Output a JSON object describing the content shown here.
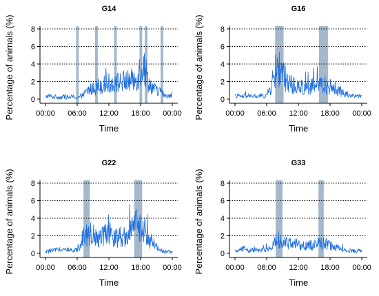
{
  "figure": {
    "background": "#ffffff"
  },
  "style": {
    "line_color": "#1f6fe0",
    "band_color": "#a3b8cb",
    "grid_color": "#000000",
    "axis_color": "#000000"
  },
  "chart_data": [
    {
      "type": "line",
      "title": "G14",
      "xlabel": "Time",
      "ylabel": "Percentage of animals (%)",
      "x_ticks": [
        "00:00",
        "06:00",
        "12:00",
        "18:00",
        "00:00"
      ],
      "y_ticks": [
        "0",
        "2",
        "4",
        "6",
        "8"
      ],
      "xlim_hours": [
        0,
        24
      ],
      "ylim": [
        0,
        8
      ],
      "grid": "horizontal dotted",
      "shaded_bands_hours": [
        [
          5.8,
          6.3
        ],
        [
          9.4,
          9.9
        ],
        [
          13.0,
          13.5
        ],
        [
          17.8,
          18.3
        ],
        [
          18.8,
          19.3
        ],
        [
          21.8,
          22.3
        ]
      ],
      "series": [
        {
          "values": [
            {
              "x": 0,
              "y": 0.2
            },
            {
              "x": 0.5,
              "y": 0.4
            },
            {
              "x": 1,
              "y": 0.3
            },
            {
              "x": 1.5,
              "y": 0.2
            },
            {
              "x": 2,
              "y": 0.3
            },
            {
              "x": 2.5,
              "y": 0.2
            },
            {
              "x": 3,
              "y": 0.2
            },
            {
              "x": 3.5,
              "y": 0.3
            },
            {
              "x": 4,
              "y": 0.2
            },
            {
              "x": 4.5,
              "y": 0.2
            },
            {
              "x": 5,
              "y": 0.3
            },
            {
              "x": 5.5,
              "y": 0.2
            },
            {
              "x": 6,
              "y": 0.2
            },
            {
              "x": 6.5,
              "y": 0.2
            },
            {
              "x": 7,
              "y": 0.4
            },
            {
              "x": 7.5,
              "y": 0.7
            },
            {
              "x": 8,
              "y": 1.0
            },
            {
              "x": 8.5,
              "y": 1.1
            },
            {
              "x": 9,
              "y": 1.2
            },
            {
              "x": 9.5,
              "y": 1.3
            },
            {
              "x": 10,
              "y": 1.5
            },
            {
              "x": 10.5,
              "y": 1.6
            },
            {
              "x": 11,
              "y": 1.6
            },
            {
              "x": 11.5,
              "y": 1.7
            },
            {
              "x": 12,
              "y": 1.8
            },
            {
              "x": 12.5,
              "y": 1.8
            },
            {
              "x": 13,
              "y": 1.9
            },
            {
              "x": 13.5,
              "y": 1.9
            },
            {
              "x": 14,
              "y": 1.9
            },
            {
              "x": 14.5,
              "y": 2.0
            },
            {
              "x": 15,
              "y": 2.0
            },
            {
              "x": 15.5,
              "y": 2.0
            },
            {
              "x": 16,
              "y": 2.1
            },
            {
              "x": 16.5,
              "y": 2.1
            },
            {
              "x": 17,
              "y": 2.2
            },
            {
              "x": 17.5,
              "y": 2.8
            },
            {
              "x": 18,
              "y": 3.5
            },
            {
              "x": 18.5,
              "y": 4.0
            },
            {
              "x": 19,
              "y": 3.0
            },
            {
              "x": 19.5,
              "y": 2.0
            },
            {
              "x": 20,
              "y": 1.5
            },
            {
              "x": 20.5,
              "y": 1.2
            },
            {
              "x": 21,
              "y": 1.0
            },
            {
              "x": 21.5,
              "y": 0.9
            },
            {
              "x": 22,
              "y": 0.8
            },
            {
              "x": 22.5,
              "y": 0.4
            },
            {
              "x": 23,
              "y": 0.3
            },
            {
              "x": 23.5,
              "y": 0.5
            },
            {
              "x": 24,
              "y": 0.6
            }
          ]
        }
      ]
    },
    {
      "type": "line",
      "title": "G16",
      "xlabel": "Time",
      "ylabel": "Percentage of animals (%)",
      "x_ticks": [
        "00:00",
        "06:00",
        "12:00",
        "18:00",
        "00:00"
      ],
      "y_ticks": [
        "0",
        "2",
        "4",
        "6",
        "8"
      ],
      "xlim_hours": [
        0,
        24
      ],
      "ylim": [
        0,
        8
      ],
      "grid": "horizontal dotted",
      "shaded_bands_hours": [
        [
          7.6,
          9.2
        ],
        [
          15.9,
          17.6
        ]
      ],
      "series": [
        {
          "values": [
            {
              "x": 0,
              "y": 0.3
            },
            {
              "x": 0.5,
              "y": 0.4
            },
            {
              "x": 1,
              "y": 0.3
            },
            {
              "x": 1.5,
              "y": 0.3
            },
            {
              "x": 2,
              "y": 0.4
            },
            {
              "x": 2.5,
              "y": 0.3
            },
            {
              "x": 3,
              "y": 0.3
            },
            {
              "x": 3.5,
              "y": 0.4
            },
            {
              "x": 4,
              "y": 0.3
            },
            {
              "x": 4.5,
              "y": 0.3
            },
            {
              "x": 5,
              "y": 0.4
            },
            {
              "x": 5.5,
              "y": 0.3
            },
            {
              "x": 6,
              "y": 0.5
            },
            {
              "x": 6.5,
              "y": 0.9
            },
            {
              "x": 7,
              "y": 1.8
            },
            {
              "x": 7.5,
              "y": 2.8
            },
            {
              "x": 8,
              "y": 3.6
            },
            {
              "x": 8.5,
              "y": 3.3
            },
            {
              "x": 9,
              "y": 3.0
            },
            {
              "x": 9.5,
              "y": 2.4
            },
            {
              "x": 10,
              "y": 2.0
            },
            {
              "x": 10.5,
              "y": 1.8
            },
            {
              "x": 11,
              "y": 1.6
            },
            {
              "x": 11.5,
              "y": 1.5
            },
            {
              "x": 12,
              "y": 1.4
            },
            {
              "x": 12.5,
              "y": 1.4
            },
            {
              "x": 13,
              "y": 1.4
            },
            {
              "x": 13.5,
              "y": 1.3
            },
            {
              "x": 14,
              "y": 1.4
            },
            {
              "x": 14.5,
              "y": 1.4
            },
            {
              "x": 15,
              "y": 1.5
            },
            {
              "x": 15.5,
              "y": 1.6
            },
            {
              "x": 16,
              "y": 1.6
            },
            {
              "x": 16.5,
              "y": 1.7
            },
            {
              "x": 17,
              "y": 1.6
            },
            {
              "x": 17.5,
              "y": 1.5
            },
            {
              "x": 18,
              "y": 1.4
            },
            {
              "x": 18.5,
              "y": 1.3
            },
            {
              "x": 19,
              "y": 1.2
            },
            {
              "x": 19.5,
              "y": 1.0
            },
            {
              "x": 20,
              "y": 0.8
            },
            {
              "x": 20.5,
              "y": 0.7
            },
            {
              "x": 21,
              "y": 0.6
            },
            {
              "x": 21.5,
              "y": 0.5
            },
            {
              "x": 22,
              "y": 0.4
            },
            {
              "x": 22.5,
              "y": 0.4
            },
            {
              "x": 23,
              "y": 0.3
            },
            {
              "x": 23.5,
              "y": 0.3
            },
            {
              "x": 24,
              "y": 0.3
            }
          ]
        }
      ]
    },
    {
      "type": "line",
      "title": "G22",
      "xlabel": "Time",
      "ylabel": "Percentage of animals (%)",
      "x_ticks": [
        "00:00",
        "06:00",
        "12:00",
        "18:00",
        "00:00"
      ],
      "y_ticks": [
        "0",
        "2",
        "4",
        "6",
        "8"
      ],
      "xlim_hours": [
        0,
        24
      ],
      "ylim": [
        0,
        8
      ],
      "grid": "horizontal dotted",
      "shaded_bands_hours": [
        [
          7.2,
          8.4
        ],
        [
          16.8,
          18.3
        ]
      ],
      "series": [
        {
          "values": [
            {
              "x": 0,
              "y": 0.1
            },
            {
              "x": 0.5,
              "y": 0.2
            },
            {
              "x": 1,
              "y": 0.3
            },
            {
              "x": 1.5,
              "y": 0.3
            },
            {
              "x": 2,
              "y": 0.4
            },
            {
              "x": 2.5,
              "y": 0.4
            },
            {
              "x": 3,
              "y": 0.4
            },
            {
              "x": 3.5,
              "y": 0.4
            },
            {
              "x": 4,
              "y": 0.4
            },
            {
              "x": 4.5,
              "y": 0.3
            },
            {
              "x": 5,
              "y": 0.3
            },
            {
              "x": 5.5,
              "y": 0.3
            },
            {
              "x": 6,
              "y": 0.5
            },
            {
              "x": 6.5,
              "y": 1.0
            },
            {
              "x": 7,
              "y": 1.8
            },
            {
              "x": 7.5,
              "y": 2.2
            },
            {
              "x": 8,
              "y": 2.3
            },
            {
              "x": 8.5,
              "y": 2.2
            },
            {
              "x": 9,
              "y": 2.1
            },
            {
              "x": 9.5,
              "y": 2.0
            },
            {
              "x": 10,
              "y": 2.0
            },
            {
              "x": 10.5,
              "y": 2.1
            },
            {
              "x": 11,
              "y": 2.1
            },
            {
              "x": 11.5,
              "y": 2.0
            },
            {
              "x": 12,
              "y": 1.9
            },
            {
              "x": 12.5,
              "y": 1.9
            },
            {
              "x": 13,
              "y": 1.9
            },
            {
              "x": 13.5,
              "y": 1.8
            },
            {
              "x": 14,
              "y": 1.9
            },
            {
              "x": 14.5,
              "y": 1.9
            },
            {
              "x": 15,
              "y": 2.0
            },
            {
              "x": 15.5,
              "y": 2.0
            },
            {
              "x": 16,
              "y": 2.1
            },
            {
              "x": 16.5,
              "y": 2.6
            },
            {
              "x": 17,
              "y": 3.1
            },
            {
              "x": 17.5,
              "y": 3.3
            },
            {
              "x": 18,
              "y": 2.9
            },
            {
              "x": 18.5,
              "y": 2.3
            },
            {
              "x": 19,
              "y": 1.9
            },
            {
              "x": 19.5,
              "y": 1.6
            },
            {
              "x": 20,
              "y": 1.4
            },
            {
              "x": 20.5,
              "y": 1.1
            },
            {
              "x": 21,
              "y": 0.8
            },
            {
              "x": 21.5,
              "y": 0.5
            },
            {
              "x": 22,
              "y": 0.3
            },
            {
              "x": 22.5,
              "y": 0.2
            },
            {
              "x": 23,
              "y": 0.2
            },
            {
              "x": 23.5,
              "y": 0.1
            },
            {
              "x": 24,
              "y": 0.1
            }
          ]
        }
      ]
    },
    {
      "type": "line",
      "title": "G33",
      "xlabel": "Time",
      "ylabel": "Percentage of animals (%)",
      "x_ticks": [
        "00:00",
        "06:00",
        "12:00",
        "18:00",
        "00:00"
      ],
      "y_ticks": [
        "0",
        "2",
        "4",
        "6",
        "8"
      ],
      "xlim_hours": [
        0,
        24
      ],
      "ylim": [
        0,
        8
      ],
      "grid": "horizontal dotted",
      "shaded_bands_hours": [
        [
          7.7,
          9.0
        ],
        [
          15.8,
          16.8
        ]
      ],
      "series": [
        {
          "values": [
            {
              "x": 0,
              "y": 0.1
            },
            {
              "x": 0.5,
              "y": 0.3
            },
            {
              "x": 1,
              "y": 0.4
            },
            {
              "x": 1.5,
              "y": 0.6
            },
            {
              "x": 2,
              "y": 0.5
            },
            {
              "x": 2.5,
              "y": 0.3
            },
            {
              "x": 3,
              "y": 0.3
            },
            {
              "x": 3.5,
              "y": 0.4
            },
            {
              "x": 4,
              "y": 0.4
            },
            {
              "x": 4.5,
              "y": 0.3
            },
            {
              "x": 5,
              "y": 0.3
            },
            {
              "x": 5.5,
              "y": 0.4
            },
            {
              "x": 6,
              "y": 0.4
            },
            {
              "x": 6.5,
              "y": 0.5
            },
            {
              "x": 7,
              "y": 0.7
            },
            {
              "x": 7.5,
              "y": 1.1
            },
            {
              "x": 8,
              "y": 1.6
            },
            {
              "x": 8.5,
              "y": 1.5
            },
            {
              "x": 9,
              "y": 1.3
            },
            {
              "x": 9.5,
              "y": 1.2
            },
            {
              "x": 10,
              "y": 1.1
            },
            {
              "x": 10.5,
              "y": 1.1
            },
            {
              "x": 11,
              "y": 1.0
            },
            {
              "x": 11.5,
              "y": 1.0
            },
            {
              "x": 12,
              "y": 1.0
            },
            {
              "x": 12.5,
              "y": 0.9
            },
            {
              "x": 13,
              "y": 0.9
            },
            {
              "x": 13.5,
              "y": 0.9
            },
            {
              "x": 14,
              "y": 0.9
            },
            {
              "x": 14.5,
              "y": 0.9
            },
            {
              "x": 15,
              "y": 1.0
            },
            {
              "x": 15.5,
              "y": 1.1
            },
            {
              "x": 16,
              "y": 1.2
            },
            {
              "x": 16.5,
              "y": 1.2
            },
            {
              "x": 17,
              "y": 1.1
            },
            {
              "x": 17.5,
              "y": 1.0
            },
            {
              "x": 18,
              "y": 0.9
            },
            {
              "x": 18.5,
              "y": 0.8
            },
            {
              "x": 19,
              "y": 0.7
            },
            {
              "x": 19.5,
              "y": 0.6
            },
            {
              "x": 20,
              "y": 0.5
            },
            {
              "x": 20.5,
              "y": 0.5
            },
            {
              "x": 21,
              "y": 0.4
            },
            {
              "x": 21.5,
              "y": 0.3
            },
            {
              "x": 22,
              "y": 0.3
            },
            {
              "x": 22.5,
              "y": 0.2
            },
            {
              "x": 23,
              "y": 0.2
            },
            {
              "x": 23.5,
              "y": 0.3
            },
            {
              "x": 24,
              "y": 0.3
            }
          ]
        }
      ]
    }
  ]
}
